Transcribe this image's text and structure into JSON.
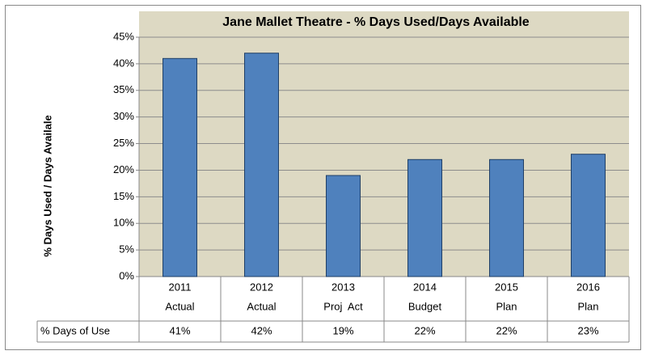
{
  "chart_data": {
    "type": "bar",
    "title": "Jane Mallet Theatre - % Days Used/Days Available",
    "y_label": "% Days Used / Days Availale",
    "categories": [
      [
        "2011",
        "Actual"
      ],
      [
        "2012",
        "Actual"
      ],
      [
        "2013",
        "Proj  Act"
      ],
      [
        "2014",
        "Budget"
      ],
      [
        "2015",
        "Plan"
      ],
      [
        "2016",
        "Plan"
      ]
    ],
    "series": [
      {
        "name": "% Days of Use",
        "color": "#4f81bd",
        "values": [
          41,
          42,
          19,
          22,
          22,
          23
        ],
        "value_labels": [
          "41%",
          "42%",
          "19%",
          "22%",
          "22%",
          "23%"
        ]
      }
    ],
    "ylim": [
      0,
      45
    ],
    "yticks": [
      {
        "value": 0,
        "label": "0%"
      },
      {
        "value": 5,
        "label": "5%"
      },
      {
        "value": 10,
        "label": "10%"
      },
      {
        "value": 15,
        "label": "15%"
      },
      {
        "value": 20,
        "label": "20%"
      },
      {
        "value": 25,
        "label": "25%"
      },
      {
        "value": 30,
        "label": "30%"
      },
      {
        "value": 35,
        "label": "35%"
      },
      {
        "value": 40,
        "label": "40%"
      },
      {
        "value": 45,
        "label": "45%"
      }
    ],
    "grid": true
  }
}
